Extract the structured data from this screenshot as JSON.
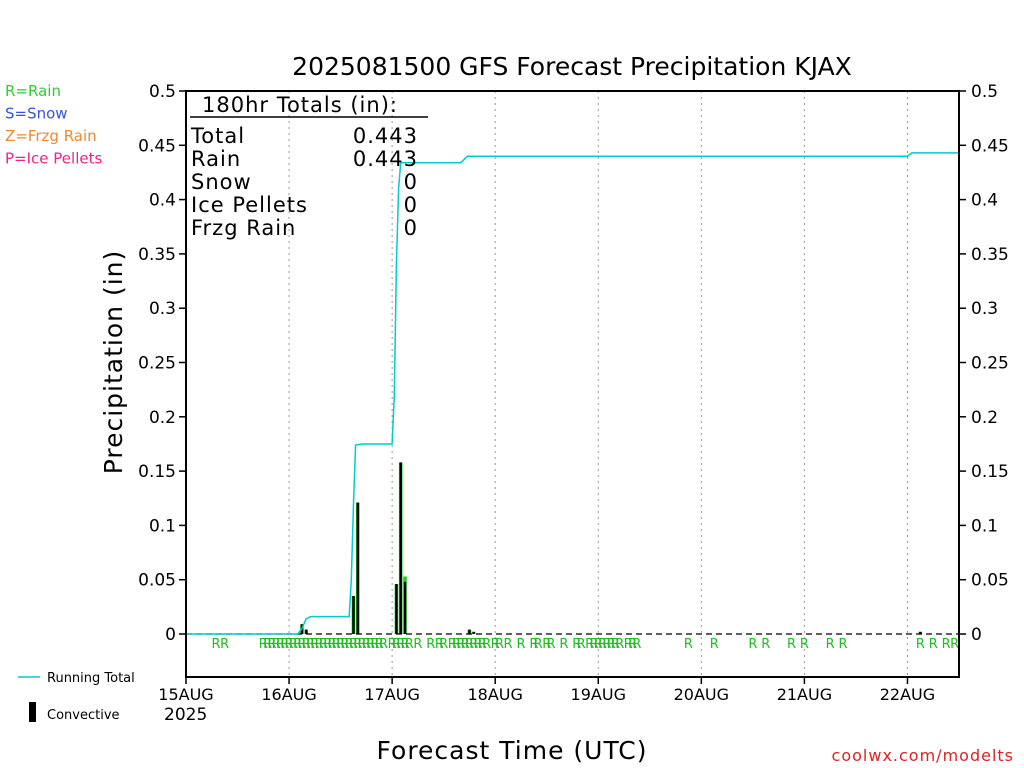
{
  "chart_data": {
    "type": "bar",
    "title": "2025081500 GFS Forecast Precipitation KJAX",
    "xlabel": "Forecast Time (UTC)",
    "ylabel": "Precipitation (in)",
    "ylim": [
      0,
      0.5
    ],
    "yticks": [
      "0.5",
      "0.45",
      "0.4",
      "0.35",
      "0.3",
      "0.25",
      "0.2",
      "0.15",
      "0.1",
      "0.05",
      "0"
    ],
    "xlim_hours": [
      0,
      180
    ],
    "xticks": [
      {
        "label": "15AUG",
        "hour": 0
      },
      {
        "label": "16AUG",
        "hour": 24
      },
      {
        "label": "17AUG",
        "hour": 48
      },
      {
        "label": "18AUG",
        "hour": 72
      },
      {
        "label": "19AUG",
        "hour": 96
      },
      {
        "label": "20AUG",
        "hour": 120
      },
      {
        "label": "21AUG",
        "hour": 144
      },
      {
        "label": "22AUG",
        "hour": 168
      }
    ],
    "year_label": "2025",
    "grid": "vertical dotted at each day",
    "legend": {
      "precip_types": [
        {
          "text": "R=Rain",
          "color": "#33cc33"
        },
        {
          "text": "S=Snow",
          "color": "#3355dd"
        },
        {
          "text": "Z=Frzg Rain",
          "color": "#ee8833"
        },
        {
          "text": "P=Ice Pellets",
          "color": "#ee2288"
        }
      ],
      "series": [
        {
          "text": "Running Total",
          "color": "#00cccc"
        },
        {
          "text": "Convective",
          "color": "#000000"
        }
      ]
    },
    "totals_box": {
      "header": "180hr Totals (in):",
      "rows": [
        {
          "label": "Total",
          "value": "0.443"
        },
        {
          "label": "Rain",
          "value": "0.443"
        },
        {
          "label": "Snow",
          "value": "0"
        },
        {
          "label": "Ice Pellets",
          "value": "0"
        },
        {
          "label": "Frzg Rain",
          "value": "0"
        }
      ]
    },
    "series": [
      {
        "name": "Running Total",
        "color": "#00cccc",
        "points": [
          [
            0,
            0
          ],
          [
            26,
            0
          ],
          [
            27,
            0.005
          ],
          [
            28,
            0.014
          ],
          [
            29,
            0.016
          ],
          [
            38,
            0.016
          ],
          [
            38.5,
            0.05
          ],
          [
            39,
            0.12
          ],
          [
            39.5,
            0.174
          ],
          [
            41,
            0.175
          ],
          [
            48,
            0.175
          ],
          [
            48.5,
            0.22
          ],
          [
            49,
            0.34
          ],
          [
            49.5,
            0.41
          ],
          [
            50,
            0.434
          ],
          [
            64,
            0.434
          ],
          [
            65.5,
            0.44
          ],
          [
            168,
            0.44
          ],
          [
            169,
            0.443
          ],
          [
            180,
            0.443
          ]
        ]
      }
    ],
    "bars": [
      {
        "hour": 27,
        "total": 0.009,
        "convective": 0.009
      },
      {
        "hour": 28,
        "total": 0.004,
        "convective": 0.004
      },
      {
        "hour": 39,
        "total": 0.035,
        "convective": 0.035
      },
      {
        "hour": 40,
        "total": 0.121,
        "convective": 0.121
      },
      {
        "hour": 49,
        "total": 0.046,
        "convective": 0.046
      },
      {
        "hour": 50,
        "total": 0.158,
        "convective": 0.158
      },
      {
        "hour": 51,
        "total": 0.053,
        "convective": 0.048
      },
      {
        "hour": 66,
        "total": 0.004,
        "convective": 0.004
      },
      {
        "hour": 67,
        "total": 0.002,
        "convective": 0.002
      },
      {
        "hour": 171,
        "total": 0.002,
        "convective": 0.002
      }
    ],
    "type_markers": {
      "symbol": "R",
      "hours": [
        7,
        9,
        18,
        19,
        20,
        21,
        22,
        23,
        24,
        25,
        26,
        27,
        28,
        29,
        30,
        31,
        32,
        33,
        34,
        35,
        36,
        37,
        38,
        39,
        40,
        41,
        42,
        43,
        44,
        45,
        46,
        48,
        49,
        50,
        51,
        52,
        54,
        57,
        59,
        60,
        62,
        63,
        64,
        65,
        66,
        67,
        68,
        69,
        70,
        72,
        73,
        75,
        78,
        81,
        82,
        84,
        85,
        88,
        91,
        92,
        94,
        95,
        96,
        97,
        98,
        99,
        100,
        101,
        103,
        104,
        105,
        117,
        123,
        132,
        135,
        141,
        144,
        150,
        153,
        171,
        174,
        177,
        179
      ]
    }
  },
  "watermark": "coolwx.com/modelts"
}
